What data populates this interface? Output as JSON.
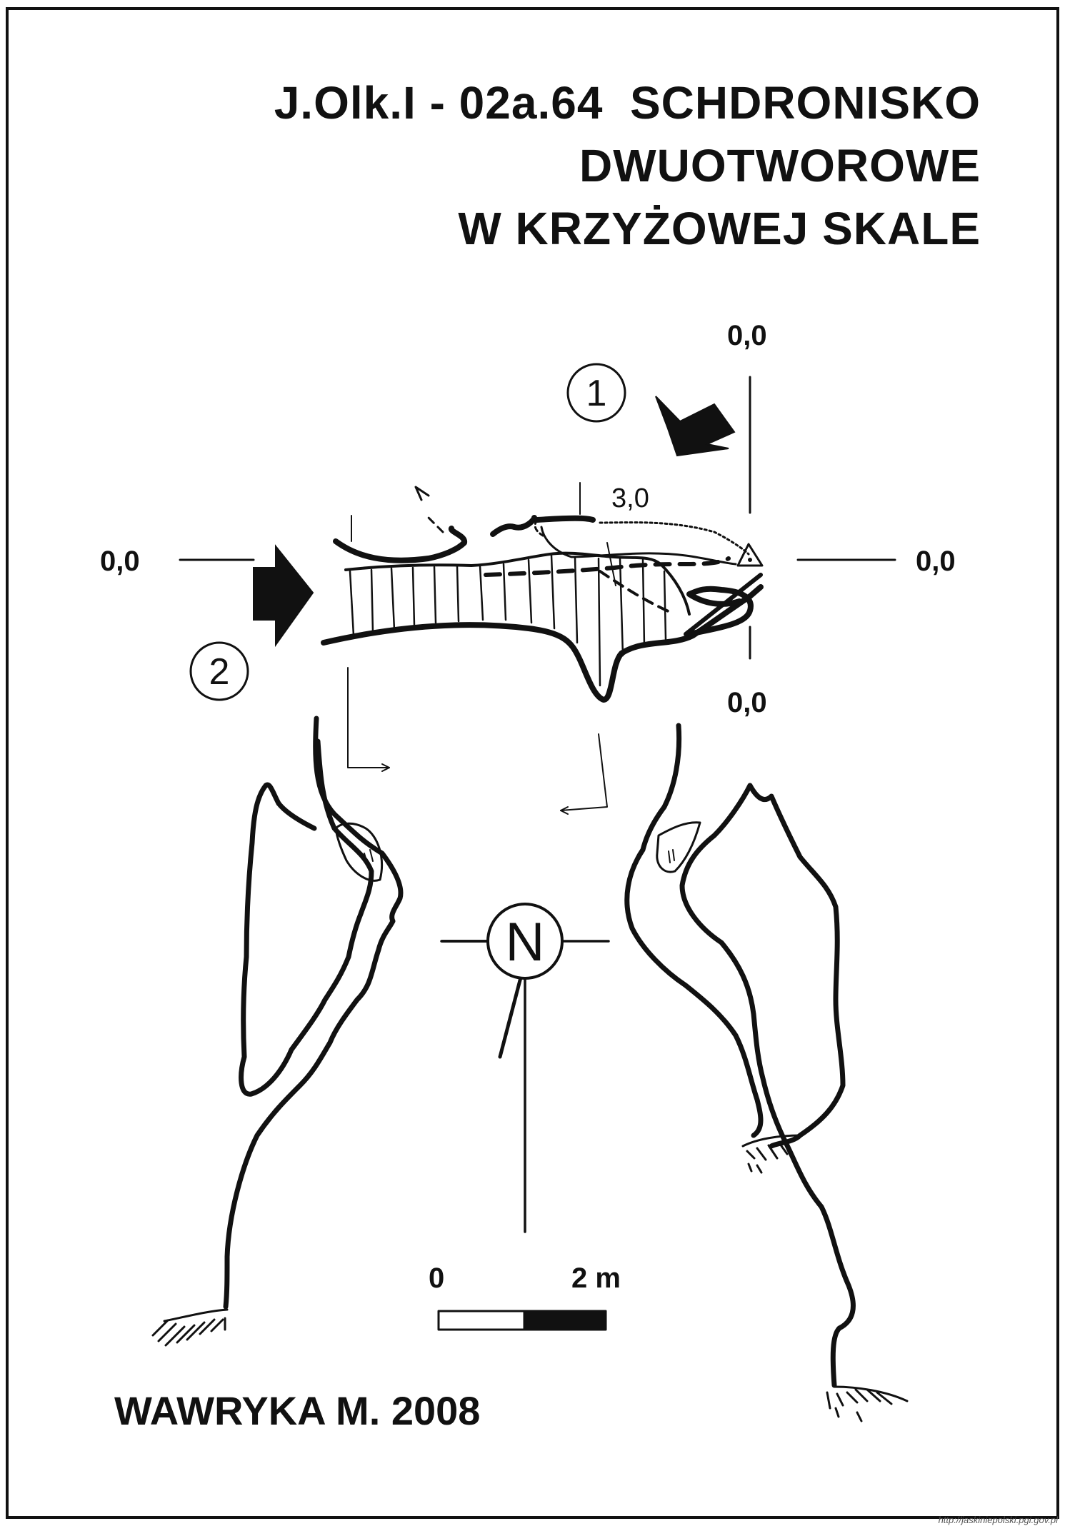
{
  "title": {
    "line1": "J.Olk.I - 02a.64  SCHDRONISKO",
    "line2": "DWUOTWOROWE",
    "line3": "W KRZYŻOWEJ SKALE"
  },
  "section_labels": {
    "top": "0,0",
    "bottom": "0,0",
    "left": "0,0",
    "right": "0,0",
    "height": "3,0"
  },
  "entrances": {
    "entrance_1": "1",
    "entrance_2": "2"
  },
  "north_label": "N",
  "scale": {
    "min_label": "0",
    "max_label": "2 m"
  },
  "author": "WAWRYKA M. 2008",
  "source": "http://jaskiniepolski.pgi.gov.pl",
  "colors": {
    "ink": "#111111",
    "paper": "#ffffff"
  }
}
